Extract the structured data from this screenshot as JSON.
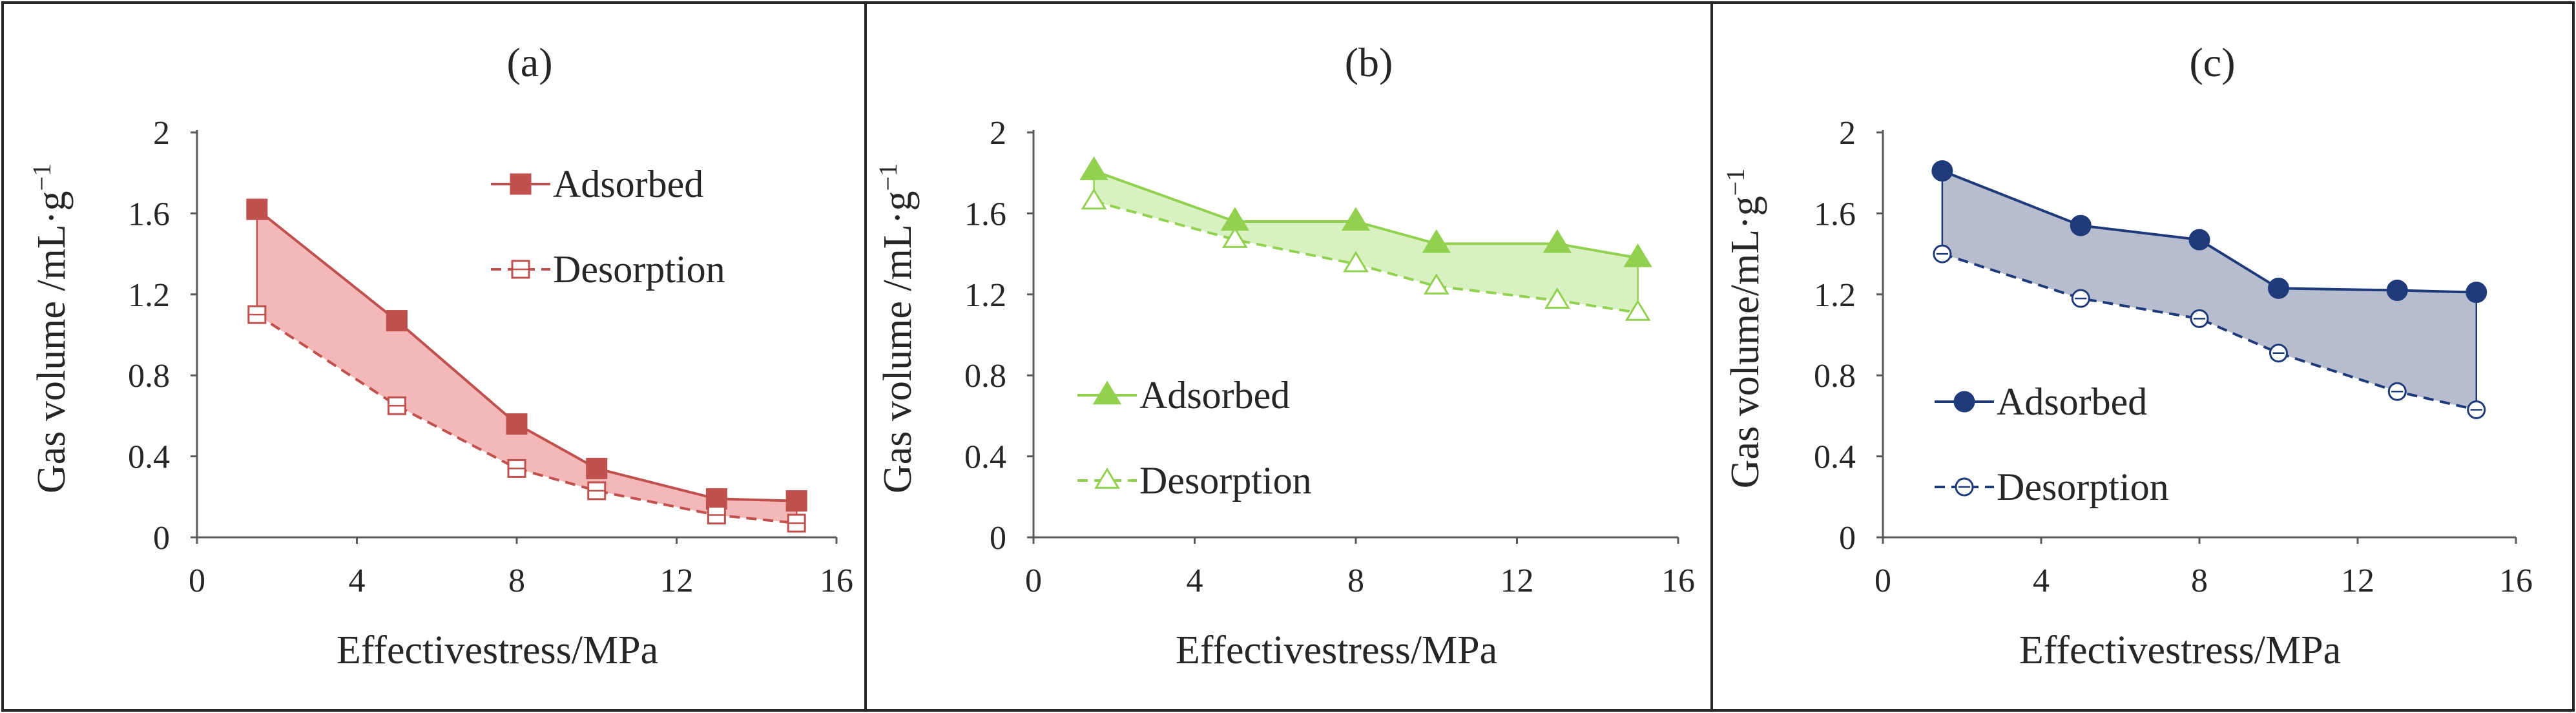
{
  "chart_data": [
    {
      "type": "line",
      "panel_label": "(a)",
      "xlabel": "Effectivestress/MPa",
      "ylabel": "Gas volume /mL·g",
      "ylabel_sup": "−1",
      "xlim": [
        0,
        16
      ],
      "ylim": [
        0,
        2
      ],
      "x_ticks": [
        0,
        4,
        8,
        12,
        16
      ],
      "y_ticks": [
        0,
        0.4,
        0.8,
        1.2,
        1.6,
        2
      ],
      "x_tick_labels": [
        "0",
        "4",
        "8",
        "12",
        "16"
      ],
      "y_tick_labels": [
        "0",
        "0.4",
        "0.8",
        "1.2",
        "1.6",
        "2"
      ],
      "color": "#C0504D",
      "fill_color": "#F4B8B8",
      "marker": "square",
      "legend_position": "top-right",
      "x": [
        1.5,
        5,
        8,
        10,
        13,
        15
      ],
      "series": [
        {
          "name": "Adsorbed",
          "values": [
            1.62,
            1.07,
            0.56,
            0.34,
            0.19,
            0.18
          ]
        },
        {
          "name": "Desorption",
          "values": [
            1.1,
            0.65,
            0.34,
            0.23,
            0.11,
            0.07
          ]
        }
      ]
    },
    {
      "type": "line",
      "panel_label": "(b)",
      "xlabel": "Effectivestress/MPa",
      "ylabel": "Gas volume /mL·g",
      "ylabel_sup": "−1",
      "xlim": [
        0,
        16
      ],
      "ylim": [
        0,
        2
      ],
      "x_ticks": [
        0,
        4,
        8,
        12,
        16
      ],
      "y_ticks": [
        0,
        0.4,
        0.8,
        1.2,
        1.6,
        2
      ],
      "x_tick_labels": [
        "0",
        "4",
        "8",
        "12",
        "16"
      ],
      "y_tick_labels": [
        "0",
        "0.4",
        "0.8",
        "1.2",
        "1.6",
        "2"
      ],
      "color": "#92D050",
      "fill_color": "#D8F1C0",
      "marker": "triangle",
      "legend_position": "bottom-left",
      "x": [
        1.5,
        5,
        8,
        10,
        13,
        15
      ],
      "series": [
        {
          "name": "Adsorbed",
          "values": [
            1.81,
            1.56,
            1.56,
            1.45,
            1.45,
            1.38
          ]
        },
        {
          "name": "Desorption",
          "values": [
            1.66,
            1.47,
            1.35,
            1.24,
            1.17,
            1.11
          ]
        }
      ]
    },
    {
      "type": "line",
      "panel_label": "(c)",
      "xlabel": "Effectivestress/MPa",
      "ylabel": "Gas volume/mL·g",
      "ylabel_sup": "−1",
      "xlim": [
        0,
        16
      ],
      "ylim": [
        0,
        2
      ],
      "x_ticks": [
        0,
        4,
        8,
        12,
        16
      ],
      "y_ticks": [
        0,
        0.4,
        0.8,
        1.2,
        1.6,
        2
      ],
      "x_tick_labels": [
        "0",
        "4",
        "8",
        "12",
        "16"
      ],
      "y_tick_labels": [
        "0",
        "0.4",
        "0.8",
        "1.2",
        "1.6",
        "2"
      ],
      "color": "#1F3A7A",
      "fill_color": "#B5BDCF",
      "marker": "circle",
      "legend_position": "bottom-left",
      "x": [
        1.5,
        5,
        8,
        10,
        13,
        15
      ],
      "series": [
        {
          "name": "Adsorbed",
          "values": [
            1.81,
            1.54,
            1.47,
            1.23,
            1.22,
            1.21
          ]
        },
        {
          "name": "Desorption",
          "values": [
            1.4,
            1.18,
            1.08,
            0.91,
            0.72,
            0.63
          ]
        }
      ]
    }
  ]
}
